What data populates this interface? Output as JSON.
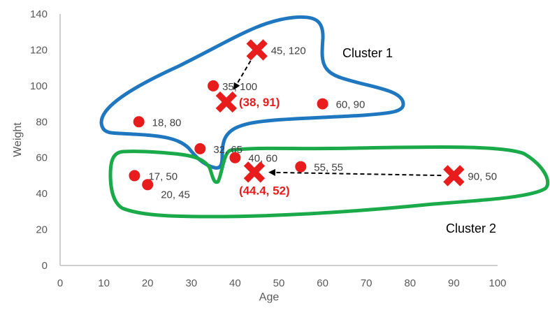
{
  "chart_data": {
    "type": "scatter",
    "xlabel": "Age",
    "ylabel": "Weight",
    "xlim": [
      0,
      100
    ],
    "ylim": [
      0,
      140
    ],
    "x_ticks": [
      "0",
      "10",
      "20",
      "30",
      "40",
      "50",
      "60",
      "70",
      "80",
      "90",
      "100"
    ],
    "y_ticks": [
      "0",
      "20",
      "40",
      "60",
      "80",
      "100",
      "120",
      "140"
    ],
    "grid": false,
    "points": [
      {
        "x": 35,
        "y": 100,
        "label": "35, 100"
      },
      {
        "x": 18,
        "y": 80,
        "label": "18, 80"
      },
      {
        "x": 60,
        "y": 90,
        "label": "60, 90"
      },
      {
        "x": 32,
        "y": 65,
        "label": "32, 65"
      },
      {
        "x": 40,
        "y": 60,
        "label": "40, 60"
      },
      {
        "x": 55,
        "y": 55,
        "label": "55, 55"
      },
      {
        "x": 17,
        "y": 50,
        "label": "17, 50"
      },
      {
        "x": 20,
        "y": 45,
        "label": "20, 45"
      }
    ],
    "old_centroids": [
      {
        "x": 45,
        "y": 120,
        "label": "45, 120"
      },
      {
        "x": 90,
        "y": 50,
        "label": "90, 50"
      }
    ],
    "new_centroids": [
      {
        "x": 38,
        "y": 91,
        "label": "(38, 91)"
      },
      {
        "x": 44.4,
        "y": 52,
        "label": "(44.4, 52)"
      }
    ],
    "clusters": [
      {
        "label": "Cluster 1",
        "color": "#1f77c0"
      },
      {
        "label": "Cluster 2",
        "color": "#1aaa4a"
      }
    ],
    "colors": {
      "point": "#e81c1c",
      "axis": "#bfbfbf",
      "tick_text": "#595959",
      "arrow": "#000000"
    }
  }
}
